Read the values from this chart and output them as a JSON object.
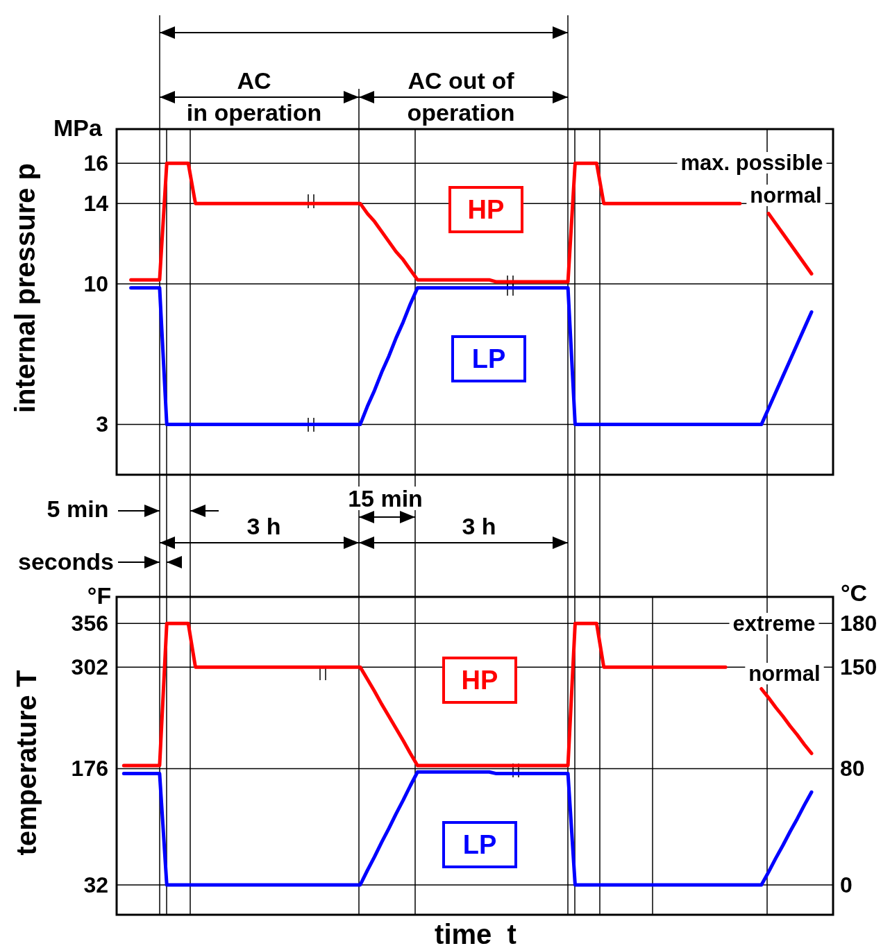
{
  "chart_data": [
    {
      "type": "line",
      "ylabel": "internal pressure p",
      "categories": [
        null,
        null,
        null,
        null,
        null,
        null,
        null,
        null,
        null,
        null,
        null,
        null,
        null,
        null,
        null,
        null,
        null,
        null,
        null,
        null,
        null,
        null,
        null,
        null,
        null,
        null,
        null,
        null,
        null,
        null,
        null,
        null,
        null,
        null,
        null,
        null,
        null,
        null,
        null,
        null,
        null,
        null,
        null,
        null,
        null,
        null,
        null,
        null,
        null,
        null,
        null,
        null,
        null,
        null,
        null,
        null,
        null,
        null,
        null,
        null,
        null,
        null,
        null,
        null,
        null,
        null,
        null,
        null,
        null,
        null,
        null,
        null,
        null,
        null,
        null,
        null,
        null,
        null,
        null,
        null,
        null,
        null,
        null,
        null,
        null,
        null,
        null,
        null,
        null,
        null,
        null,
        null,
        null,
        null,
        null,
        null,
        null
      ],
      "ylim": [
        0.5,
        17.7
      ],
      "yticks": [
        3,
        10,
        14,
        16
      ],
      "grid": true,
      "legend": false,
      "marker": "none",
      "line_style": "solid",
      "series": [
        {
          "name": "HP",
          "color": "#ff0000",
          "values": [
            null,
            10.2,
            10.2,
            10.2,
            10.2,
            10.2,
            16,
            16,
            16,
            16,
            14,
            14,
            14,
            14,
            14,
            14,
            14,
            14,
            14,
            14,
            14,
            14,
            14,
            14,
            14,
            14,
            14,
            14,
            14,
            14,
            14,
            14,
            14,
            14,
            13.5,
            13.1,
            12.6,
            12.1,
            11.6,
            11.2,
            10.7,
            10.2,
            10.2,
            10.2,
            10.2,
            10.2,
            10.2,
            10.2,
            10.2,
            10.2,
            10.2,
            10.2,
            10.1,
            10.1,
            10.1,
            10.1,
            10.1,
            10.1,
            10.1,
            10.1,
            10.1,
            10.1,
            10.1,
            16,
            16,
            16,
            16,
            14,
            14,
            14,
            14,
            14,
            14,
            14,
            14,
            14,
            14,
            14,
            14,
            14,
            14,
            14,
            14,
            14,
            14,
            14,
            14,
            null,
            null,
            null,
            13.5,
            13,
            12.5,
            12,
            11.5,
            11,
            10.5
          ]
        },
        {
          "name": "LP",
          "color": "#0000ff",
          "values": [
            null,
            9.8,
            9.8,
            9.8,
            9.8,
            9.8,
            3,
            3,
            3,
            3,
            3,
            3,
            3,
            3,
            3,
            3,
            3,
            3,
            3,
            3,
            3,
            3,
            3,
            3,
            3,
            3,
            3,
            3,
            3,
            3,
            3,
            3,
            3,
            3,
            3.9,
            4.7,
            5.6,
            6.4,
            7.3,
            8.1,
            9.0,
            9.8,
            9.8,
            9.8,
            9.8,
            9.8,
            9.8,
            9.8,
            9.8,
            9.8,
            9.8,
            9.8,
            9.8,
            9.8,
            9.8,
            9.8,
            9.8,
            9.8,
            9.8,
            9.8,
            9.8,
            9.8,
            9.8,
            3,
            3,
            3,
            3,
            3,
            3,
            3,
            3,
            3,
            3,
            3,
            3,
            3,
            3,
            3,
            3,
            3,
            3,
            3,
            3,
            3,
            3,
            3,
            3,
            3,
            3,
            3,
            3.8,
            4.6,
            5.4,
            6.2,
            7.0,
            7.8,
            8.6
          ]
        }
      ],
      "annotations": [
        "MPa",
        "AC\nin operation",
        "AC out of\noperation",
        "5 min",
        "15 min",
        "3 h",
        "3 h",
        "seconds",
        "max. possible",
        "normal"
      ]
    },
    {
      "type": "line",
      "xlabel": "time  t",
      "ylabel": "temperature T",
      "categories": [
        null,
        null,
        null,
        null,
        null,
        null,
        null,
        null,
        null,
        null,
        null,
        null,
        null,
        null,
        null,
        null,
        null,
        null,
        null,
        null,
        null,
        null,
        null,
        null,
        null,
        null,
        null,
        null,
        null,
        null,
        null,
        null,
        null,
        null,
        null,
        null,
        null,
        null,
        null,
        null,
        null,
        null,
        null,
        null,
        null,
        null,
        null,
        null,
        null,
        null,
        null,
        null,
        null,
        null,
        null,
        null,
        null,
        null,
        null,
        null,
        null,
        null,
        null,
        null,
        null,
        null,
        null,
        null,
        null,
        null,
        null,
        null,
        null,
        null,
        null,
        null,
        null,
        null,
        null,
        null,
        null,
        null,
        null,
        null,
        null,
        null,
        null,
        null,
        null,
        null,
        null,
        null,
        null,
        null,
        null,
        null,
        null
      ],
      "ylim": [
        -5,
        389
      ],
      "yticks": [
        32,
        176,
        302,
        356
      ],
      "y2lim": [
        -20.6,
        198.3
      ],
      "y2ticks": [
        0,
        80,
        150,
        180
      ],
      "grid": true,
      "legend": false,
      "marker": "none",
      "line_style": "solid",
      "series": [
        {
          "name": "HP",
          "color": "#ff0000",
          "values": [
            180,
            180,
            180,
            180,
            180,
            180,
            356,
            356,
            356,
            356,
            302,
            302,
            302,
            302,
            302,
            302,
            302,
            302,
            302,
            302,
            302,
            302,
            302,
            302,
            302,
            302,
            302,
            302,
            302,
            302,
            302,
            302,
            302,
            302,
            287,
            272,
            256,
            241,
            226,
            211,
            195,
            180,
            180,
            180,
            180,
            180,
            180,
            180,
            180,
            180,
            180,
            180,
            180,
            180,
            180,
            180,
            180,
            180,
            180,
            180,
            180,
            180,
            180,
            356,
            356,
            356,
            356,
            302,
            302,
            302,
            302,
            302,
            302,
            302,
            302,
            302,
            302,
            302,
            302,
            302,
            302,
            302,
            302,
            302,
            302,
            null,
            null,
            null,
            null,
            275,
            264,
            252,
            241,
            229,
            218,
            206,
            195
          ]
        },
        {
          "name": "LP",
          "color": "#0000ff",
          "values": [
            170,
            170,
            170,
            170,
            170,
            170,
            32,
            32,
            32,
            32,
            32,
            32,
            32,
            32,
            32,
            32,
            32,
            32,
            32,
            32,
            32,
            32,
            32,
            32,
            32,
            32,
            32,
            32,
            32,
            32,
            32,
            32,
            32,
            32,
            50,
            67,
            85,
            102,
            120,
            137,
            155,
            172,
            172,
            172,
            172,
            172,
            172,
            172,
            172,
            172,
            172,
            172,
            170,
            170,
            170,
            170,
            170,
            170,
            170,
            170,
            170,
            170,
            170,
            32,
            32,
            32,
            32,
            32,
            32,
            32,
            32,
            32,
            32,
            32,
            32,
            32,
            32,
            32,
            32,
            32,
            32,
            32,
            32,
            32,
            32,
            32,
            32,
            32,
            32,
            32,
            48,
            65,
            81,
            98,
            114,
            131,
            147
          ]
        }
      ],
      "annotations": [
        "°F",
        "°C",
        "extreme",
        "normal"
      ]
    }
  ]
}
